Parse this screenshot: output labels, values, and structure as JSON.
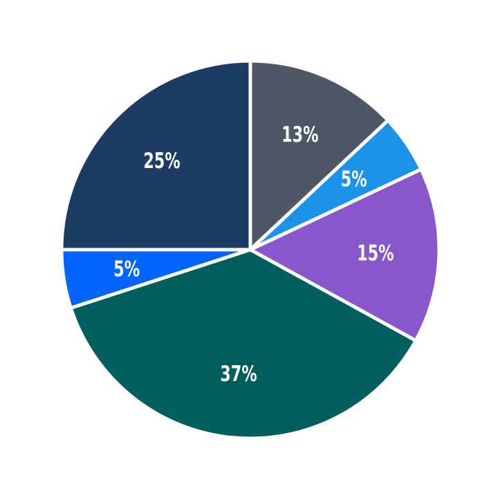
{
  "chart_data": {
    "type": "pie",
    "title": "",
    "legend": "none",
    "values": [
      13,
      5,
      15,
      37,
      5,
      25
    ],
    "labels": [
      "13%",
      "5%",
      "15%",
      "37%",
      "5%",
      "25%"
    ],
    "colors": [
      "#4d5766",
      "#1b93e8",
      "#8757cb",
      "#015f5e",
      "#0165fc",
      "#1c3c63"
    ],
    "start_angle_deg": 90,
    "direction": "clockwise",
    "label_color": "#ffffff",
    "wedge_edge_color": "#ffffff",
    "background_color": "#ffffff"
  }
}
